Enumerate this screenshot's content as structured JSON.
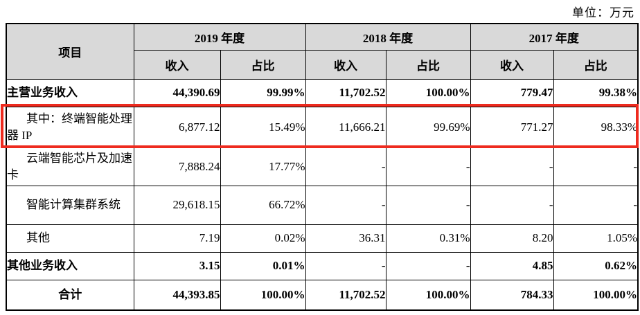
{
  "unit_label": "单位：万元",
  "colors": {
    "highlight_box": "#ee2b1f",
    "header_bg": "#d9d9d9",
    "border": "#000000"
  },
  "table": {
    "item_header": "项目",
    "year_groups": [
      {
        "label": "2019 年度"
      },
      {
        "label": "2018 年度"
      },
      {
        "label": "2017 年度"
      }
    ],
    "sub_headers": {
      "revenue": "收入",
      "share": "占比"
    },
    "rows": [
      {
        "label": "主营业务收入",
        "label_style": "left",
        "bold": true,
        "highlighted": false,
        "cells": [
          "44,390.69",
          "99.99%",
          "11,702.52",
          "100.00%",
          "779.47",
          "99.38%"
        ]
      },
      {
        "label": "其中：终端智能处理器 IP",
        "label_style": "indent",
        "bold": false,
        "highlighted": true,
        "cells": [
          "6,877.12",
          "15.49%",
          "11,666.21",
          "99.69%",
          "771.27",
          "98.33%"
        ]
      },
      {
        "label": "云端智能芯片及加速卡",
        "label_style": "indent",
        "bold": false,
        "highlighted": false,
        "cells": [
          "7,888.24",
          "17.77%",
          "-",
          "-",
          "-",
          "-"
        ]
      },
      {
        "label": "智能计算集群系统",
        "label_style": "indent",
        "bold": false,
        "highlighted": false,
        "cells": [
          "29,618.15",
          "66.72%",
          "-",
          "-",
          "-",
          "-"
        ]
      },
      {
        "label": "其他",
        "label_style": "indent",
        "bold": false,
        "highlighted": false,
        "cells": [
          "7.19",
          "0.02%",
          "36.31",
          "0.31%",
          "8.20",
          "1.05%"
        ]
      },
      {
        "label": "其他业务收入",
        "label_style": "left",
        "bold": true,
        "highlighted": false,
        "cells": [
          "3.15",
          "0.01%",
          "-",
          "-",
          "4.85",
          "0.62%"
        ]
      },
      {
        "label": "合计",
        "label_style": "center",
        "bold": true,
        "highlighted": false,
        "cells": [
          "44,393.85",
          "100.00%",
          "11,702.52",
          "100.00%",
          "784.33",
          "100.00%"
        ]
      }
    ]
  }
}
